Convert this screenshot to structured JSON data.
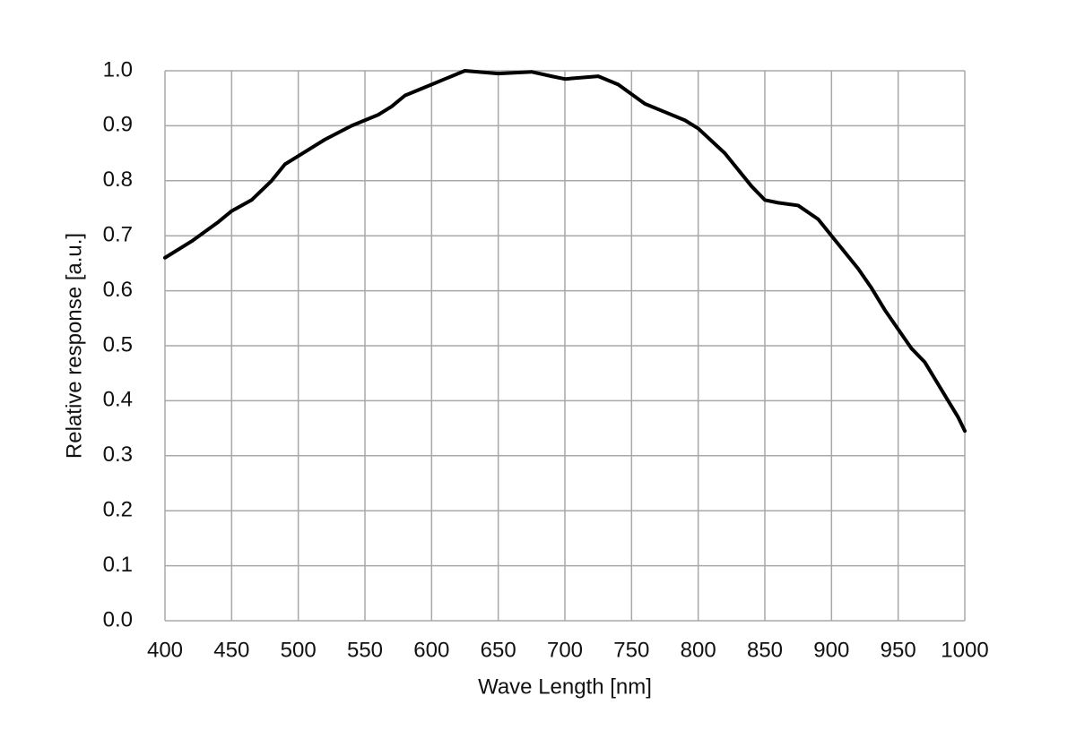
{
  "chart_data": {
    "type": "line",
    "x_label": "Wave Length [nm]",
    "y_label": "Relative response [a.u.]",
    "x": [
      400,
      420,
      440,
      450,
      465,
      480,
      490,
      500,
      520,
      540,
      560,
      570,
      580,
      600,
      610,
      625,
      650,
      675,
      690,
      700,
      725,
      740,
      760,
      775,
      790,
      800,
      820,
      840,
      850,
      860,
      875,
      890,
      900,
      920,
      930,
      940,
      950,
      960,
      970,
      975,
      980,
      990,
      995,
      1000
    ],
    "values": [
      0.66,
      0.69,
      0.725,
      0.745,
      0.765,
      0.8,
      0.83,
      0.845,
      0.875,
      0.9,
      0.92,
      0.935,
      0.955,
      0.975,
      0.985,
      1.0,
      0.995,
      0.998,
      0.99,
      0.985,
      0.99,
      0.975,
      0.94,
      0.925,
      0.91,
      0.895,
      0.85,
      0.79,
      0.765,
      0.76,
      0.755,
      0.73,
      0.7,
      0.64,
      0.605,
      0.565,
      0.53,
      0.495,
      0.47,
      0.45,
      0.43,
      0.39,
      0.37,
      0.345
    ],
    "color": "#000000",
    "xlim": [
      400,
      1000
    ],
    "xticks": [
      400,
      450,
      500,
      550,
      600,
      650,
      700,
      750,
      800,
      850,
      900,
      950,
      1000
    ],
    "ylim": [
      0,
      1
    ],
    "yticks": [
      {
        "value": 0,
        "label": "0.0"
      },
      0.1,
      0.2,
      0.3,
      0.4,
      0.5,
      0.6,
      0.7,
      0.8,
      0.9,
      {
        "value": 1,
        "label": "1.0"
      }
    ],
    "grid": true
  }
}
